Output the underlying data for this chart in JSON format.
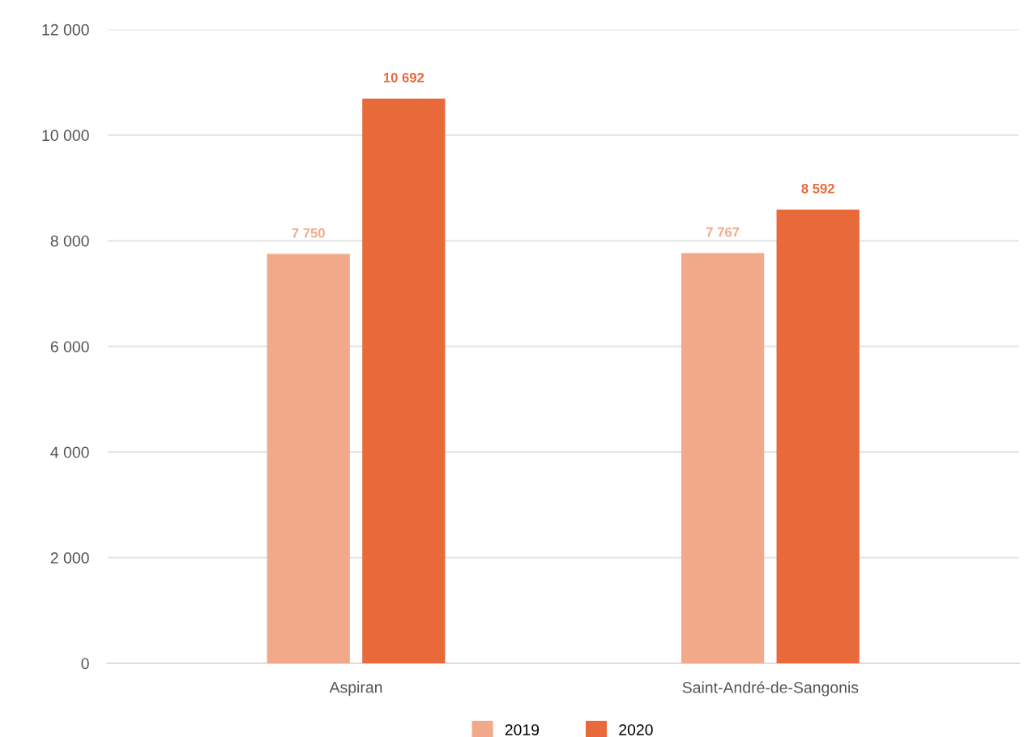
{
  "chart_data": {
    "type": "bar",
    "categories": [
      "Aspiran",
      "Saint-André-de-Sangonis"
    ],
    "series": [
      {
        "name": "2019",
        "color": "#f2a98a",
        "values": [
          7750,
          7767
        ],
        "value_labels": [
          "7 750",
          "7 767"
        ]
      },
      {
        "name": "2020",
        "color": "#e8693a",
        "values": [
          10692,
          8592
        ],
        "value_labels": [
          "10 692",
          "8 592"
        ]
      }
    ],
    "ylim": [
      0,
      12000
    ],
    "yticks": [
      {
        "value": 0,
        "label": "0"
      },
      {
        "value": 2000,
        "label": "2 000"
      },
      {
        "value": 4000,
        "label": "4 000"
      },
      {
        "value": 6000,
        "label": "6 000"
      },
      {
        "value": 8000,
        "label": "8 000"
      },
      {
        "value": 10000,
        "label": "10 000"
      },
      {
        "value": 12000,
        "label": "12 000"
      }
    ],
    "grid": "y",
    "legend": "bottom"
  }
}
